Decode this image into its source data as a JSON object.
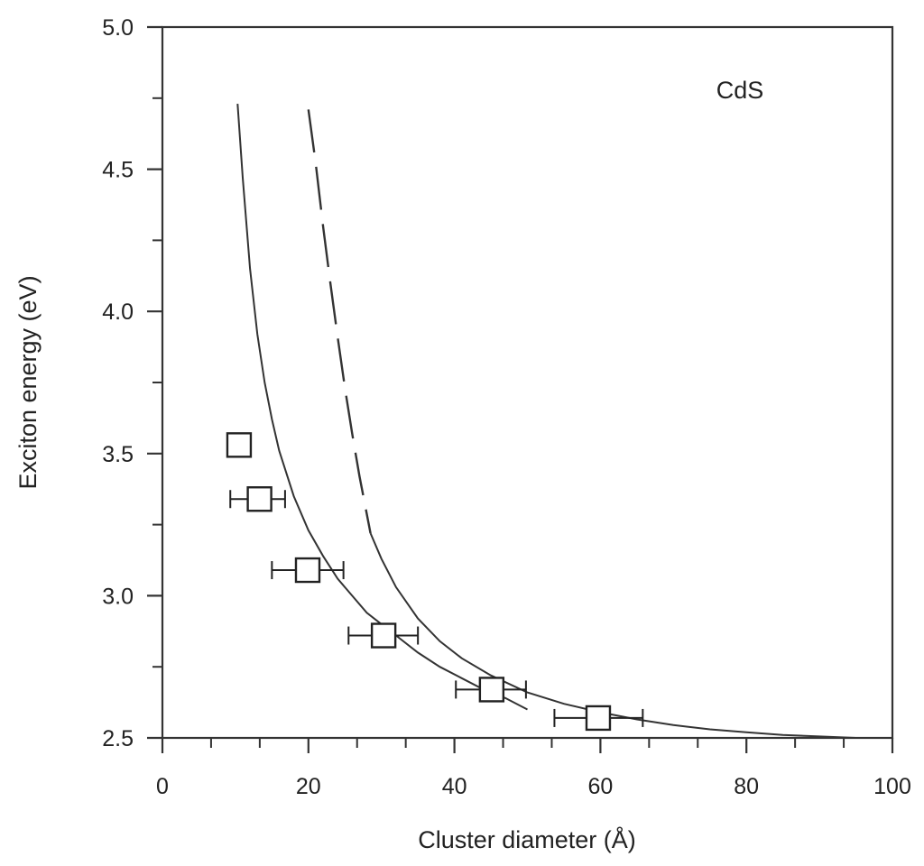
{
  "chart_data": {
    "type": "scatter",
    "title": "",
    "xlabel": "Cluster diameter (Å)",
    "ylabel": "Exciton energy (eV)",
    "xlim": [
      0,
      100
    ],
    "ylim": [
      2.5,
      5.0
    ],
    "x_ticks": [
      0,
      20,
      40,
      60,
      80,
      100
    ],
    "x_tick_labels": [
      "0",
      "20",
      "40",
      "60",
      "80",
      "100"
    ],
    "y_ticks": [
      2.5,
      3.0,
      3.5,
      4.0,
      4.5,
      5.0
    ],
    "y_tick_labels": [
      "2.5",
      "3.0",
      "3.5",
      "4.0",
      "4.5",
      "5.0"
    ],
    "annotation": "CdS",
    "grid": false,
    "legend": "none",
    "series": [
      {
        "kind": "points",
        "marker": "open-square",
        "x": [
          10.5,
          13.3,
          19.9,
          30.3,
          45.1,
          59.7
        ],
        "y": [
          3.53,
          3.34,
          3.09,
          2.86,
          2.67,
          2.57
        ],
        "x_error_low": [
          null,
          9.3,
          15.0,
          25.5,
          40.2,
          53.7
        ],
        "x_error_high": [
          null,
          16.8,
          24.8,
          35.0,
          49.8,
          65.8
        ]
      },
      {
        "kind": "line",
        "style": "solid",
        "x": [
          10.3,
          11,
          12,
          13,
          14,
          15,
          16,
          18,
          20,
          22,
          24,
          26,
          28,
          30,
          32,
          35,
          38,
          41,
          44,
          47,
          50
        ],
        "y": [
          4.73,
          4.47,
          4.15,
          3.92,
          3.75,
          3.62,
          3.51,
          3.35,
          3.23,
          3.14,
          3.06,
          3.0,
          2.94,
          2.9,
          2.86,
          2.8,
          2.75,
          2.71,
          2.67,
          2.64,
          2.6
        ]
      },
      {
        "kind": "line",
        "style": "dashed",
        "x": [
          20.0,
          21,
          22,
          23,
          24,
          25,
          26,
          27,
          28.5
        ],
        "y": [
          4.71,
          4.52,
          4.3,
          4.1,
          3.91,
          3.73,
          3.57,
          3.42,
          3.22
        ]
      },
      {
        "kind": "line",
        "style": "solid",
        "x": [
          28.5,
          30,
          32,
          35,
          38,
          41,
          45,
          50,
          55,
          60,
          65,
          70,
          75,
          80,
          85,
          90,
          95,
          100
        ],
        "y": [
          3.22,
          3.13,
          3.03,
          2.92,
          2.84,
          2.78,
          2.72,
          2.66,
          2.62,
          2.59,
          2.565,
          2.545,
          2.53,
          2.52,
          2.51,
          2.505,
          2.5,
          2.5
        ]
      }
    ]
  }
}
